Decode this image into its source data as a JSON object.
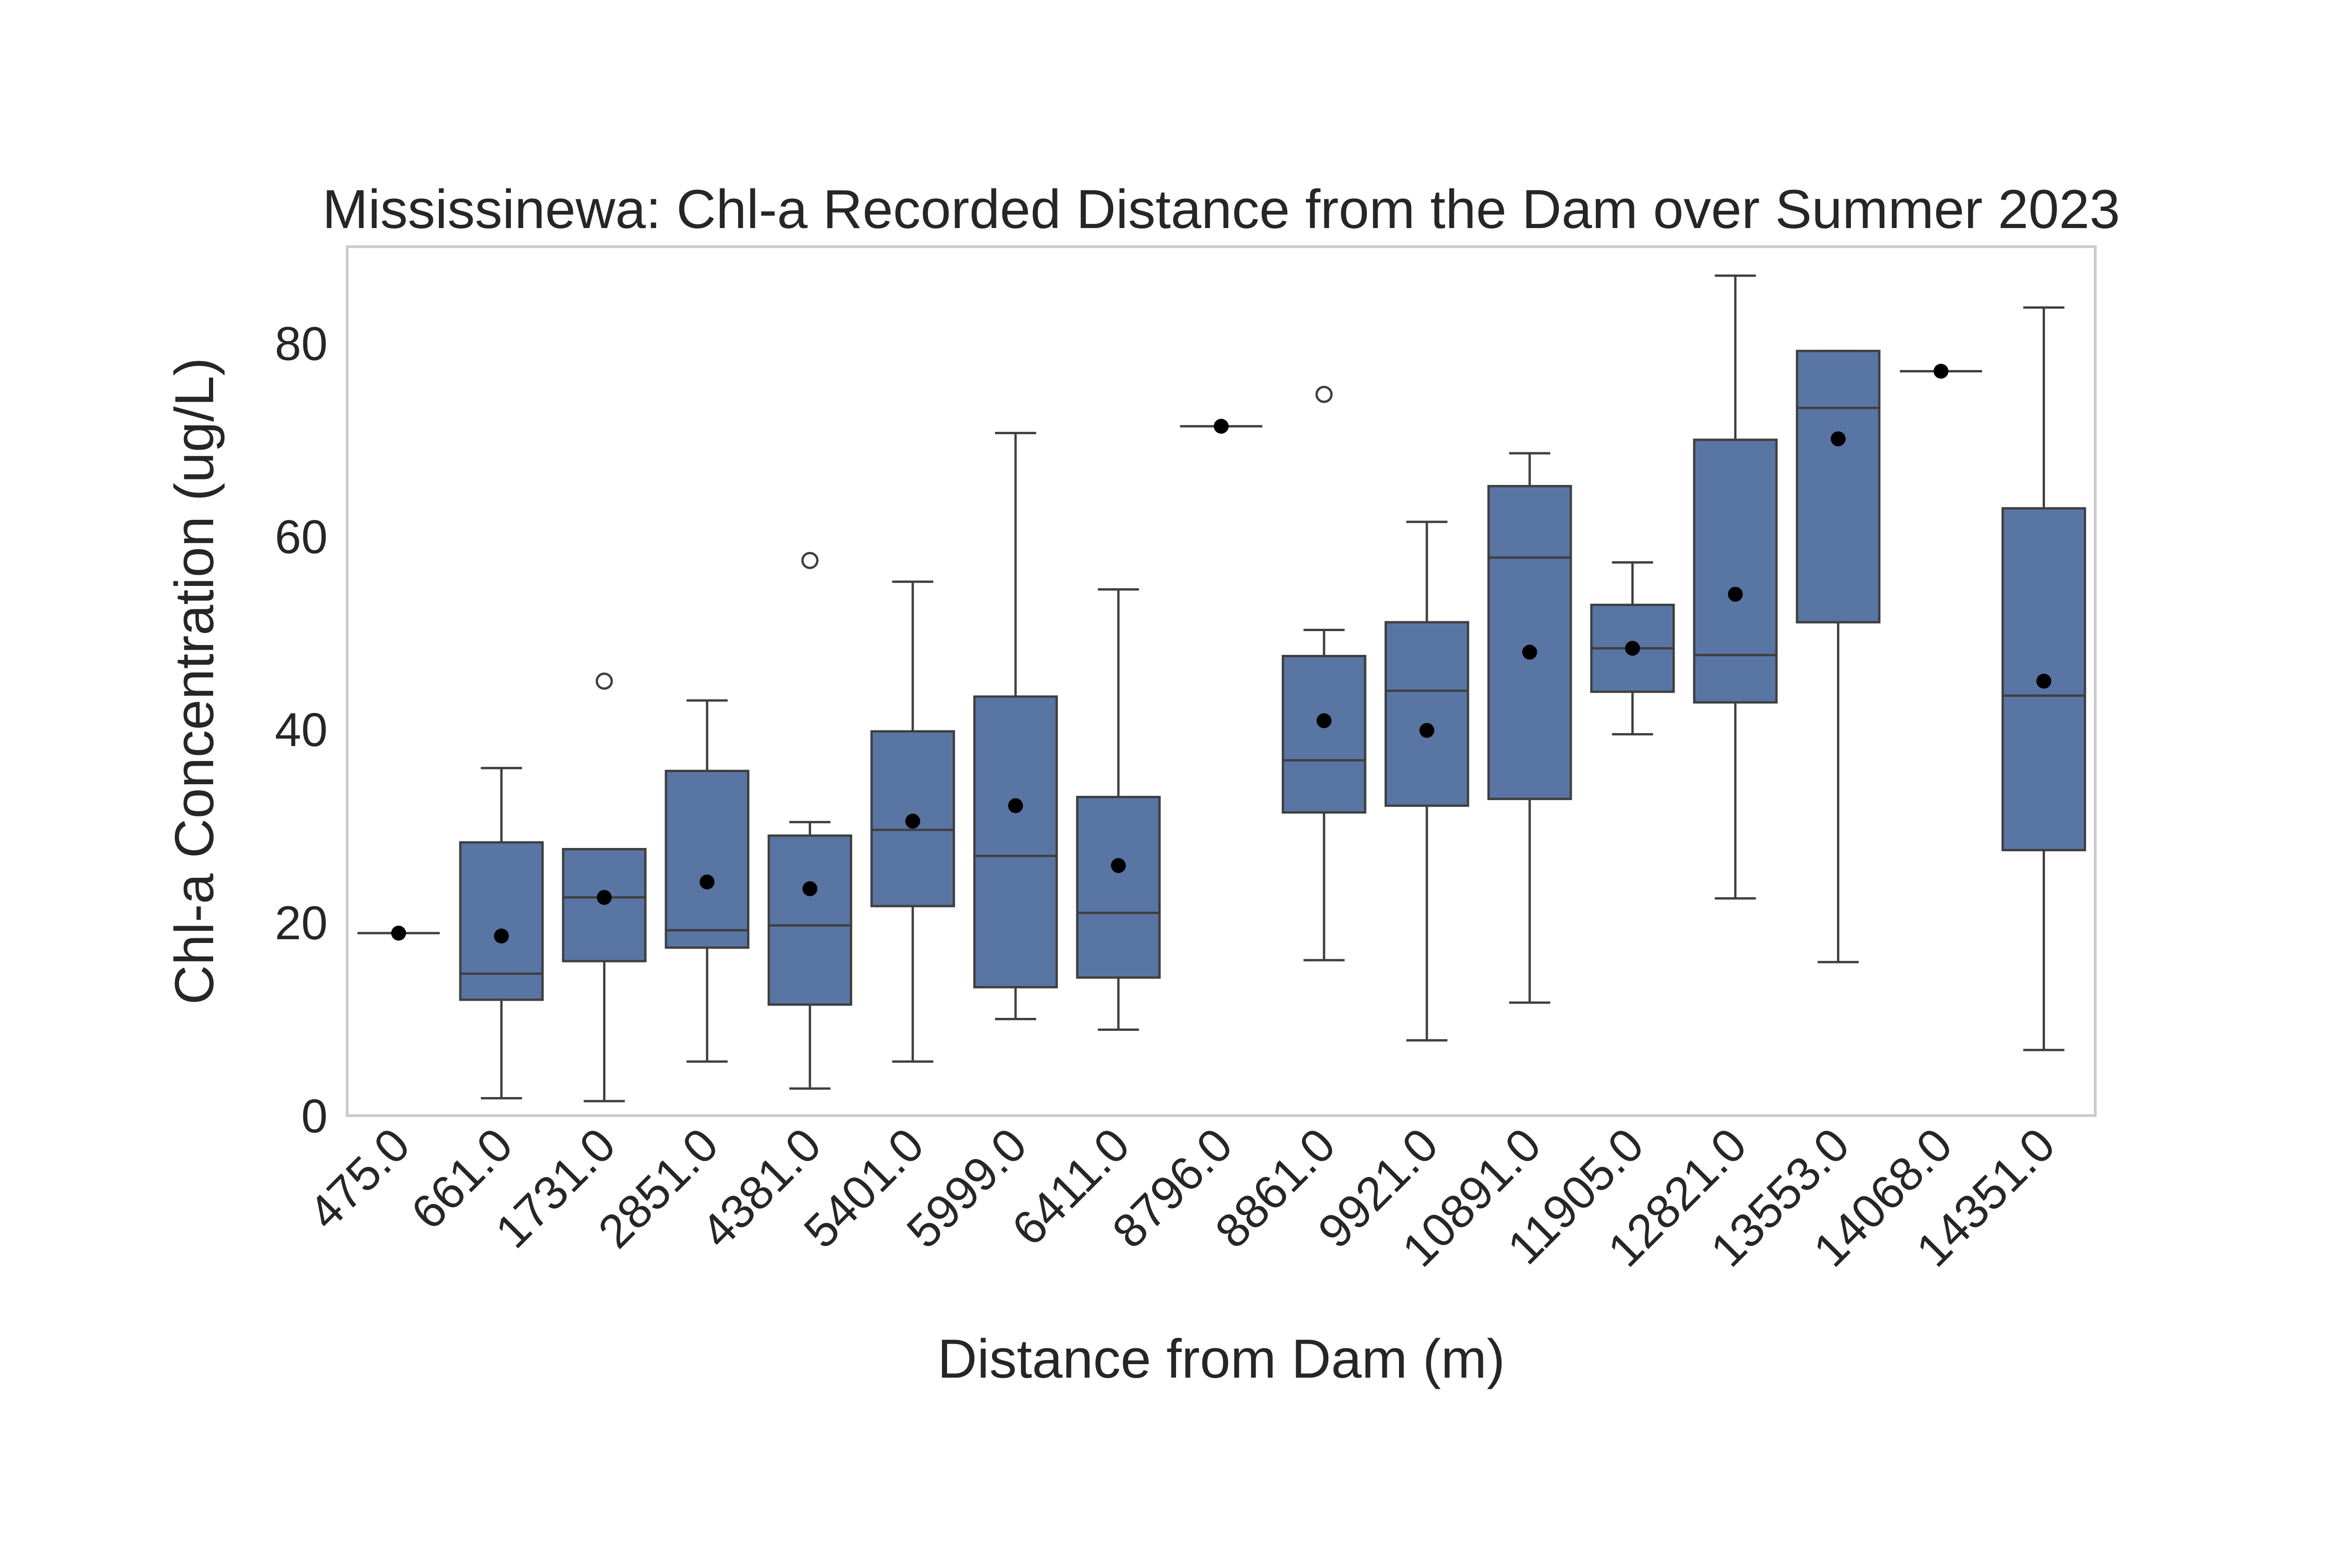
{
  "chart_data": {
    "type": "box",
    "title": "Mississinewa: Chl-a Recorded Distance from the Dam over Summer 2023",
    "xlabel": "Distance from Dam (m)",
    "ylabel": "Chl-a Concentration (ug/L)",
    "ylim": [
      0,
      90
    ],
    "yticks": [
      0,
      20,
      40,
      60,
      80
    ],
    "ytick_labels": [
      "0",
      "20",
      "40",
      "60",
      "80"
    ],
    "grid": false,
    "colors": {
      "box_fill": "#5875a4",
      "box_edge": "#3f3f3f",
      "mean_marker": "#000000",
      "frame": "#cccccc",
      "text": "#262626"
    },
    "categories": [
      "475.0",
      "661.0",
      "1731.0",
      "2851.0",
      "4381.0",
      "5401.0",
      "5999.0",
      "6411.0",
      "8796.0",
      "8861.0",
      "9921.0",
      "10891.0",
      "11905.0",
      "12821.0",
      "13553.0",
      "14068.0",
      "14351.0"
    ],
    "boxes": [
      {
        "whislo": 18.9,
        "q1": 18.9,
        "med": 18.9,
        "q3": 18.9,
        "whishi": 18.9,
        "mean": 18.9,
        "fliers": []
      },
      {
        "whislo": 1.8,
        "q1": 12.0,
        "med": 14.7,
        "q3": 28.3,
        "whishi": 36.0,
        "mean": 18.6,
        "fliers": []
      },
      {
        "whislo": 1.5,
        "q1": 16.0,
        "med": 22.6,
        "q3": 27.6,
        "whishi": 27.6,
        "mean": 22.6,
        "fliers": [
          45.0
        ]
      },
      {
        "whislo": 5.6,
        "q1": 17.4,
        "med": 19.2,
        "q3": 35.7,
        "whishi": 43.0,
        "mean": 24.2,
        "fliers": []
      },
      {
        "whislo": 2.8,
        "q1": 11.5,
        "med": 19.7,
        "q3": 29.0,
        "whishi": 30.4,
        "mean": 23.5,
        "fliers": [
          57.5
        ]
      },
      {
        "whislo": 5.6,
        "q1": 21.7,
        "med": 29.6,
        "q3": 39.8,
        "whishi": 55.3,
        "mean": 30.5,
        "fliers": []
      },
      {
        "whislo": 10.0,
        "q1": 13.3,
        "med": 26.9,
        "q3": 43.4,
        "whishi": 70.7,
        "mean": 32.1,
        "fliers": []
      },
      {
        "whislo": 8.9,
        "q1": 14.3,
        "med": 21.0,
        "q3": 33.0,
        "whishi": 54.5,
        "mean": 25.9,
        "fliers": []
      },
      {
        "whislo": 71.4,
        "q1": 71.4,
        "med": 71.4,
        "q3": 71.4,
        "whishi": 71.4,
        "mean": 71.4,
        "fliers": []
      },
      {
        "whislo": 16.1,
        "q1": 31.4,
        "med": 36.8,
        "q3": 47.6,
        "whishi": 50.3,
        "mean": 40.9,
        "fliers": [
          74.7
        ]
      },
      {
        "whislo": 7.8,
        "q1": 32.1,
        "med": 44.0,
        "q3": 51.1,
        "whishi": 61.5,
        "mean": 39.9,
        "fliers": []
      },
      {
        "whislo": 11.7,
        "q1": 32.8,
        "med": 57.8,
        "q3": 65.2,
        "whishi": 68.6,
        "mean": 48.0,
        "fliers": []
      },
      {
        "whislo": 39.5,
        "q1": 43.9,
        "med": 48.4,
        "q3": 52.9,
        "whishi": 57.3,
        "mean": 48.4,
        "fliers": []
      },
      {
        "whislo": 22.5,
        "q1": 42.8,
        "med": 47.7,
        "q3": 70.0,
        "whishi": 87.0,
        "mean": 54.0,
        "fliers": []
      },
      {
        "whislo": 15.9,
        "q1": 51.1,
        "med": 73.3,
        "q3": 79.2,
        "whishi": 79.2,
        "mean": 70.1,
        "fliers": []
      },
      {
        "whislo": 77.1,
        "q1": 77.1,
        "med": 77.1,
        "q3": 77.1,
        "whishi": 77.1,
        "mean": 77.1,
        "fliers": []
      },
      {
        "whislo": 6.8,
        "q1": 27.5,
        "med": 43.5,
        "q3": 62.9,
        "whishi": 83.7,
        "mean": 45.0,
        "fliers": []
      }
    ]
  }
}
